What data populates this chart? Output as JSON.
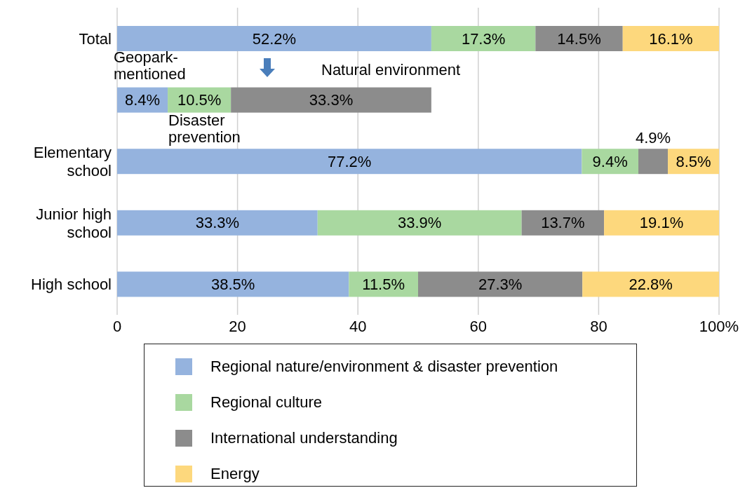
{
  "chart_data": {
    "type": "bar",
    "orientation": "horizontal",
    "stacked": true,
    "categories": [
      "Total",
      null,
      "Elementary school",
      "Junior high school",
      "High school"
    ],
    "series": [
      {
        "name": "Regional nature/environment & disaster prevention",
        "color": "#95b3de",
        "values": [
          52.2,
          8.4,
          77.2,
          33.3,
          38.5
        ],
        "value_labels": [
          "52.2%",
          "8.4%",
          "77.2%",
          "33.3%",
          "38.5%"
        ]
      },
      {
        "name": "Regional culture",
        "color": "#a9d8a0",
        "values": [
          17.3,
          10.5,
          9.4,
          33.9,
          11.5
        ],
        "value_labels": [
          "17.3%",
          "10.5%",
          "9.4%",
          "33.9%",
          "11.5%"
        ]
      },
      {
        "name": "International understanding",
        "color": "#8c8c8c",
        "values": [
          14.5,
          33.3,
          4.9,
          13.7,
          27.3
        ],
        "value_labels": [
          "14.5%",
          "33.3%",
          "4.9%",
          "13.7%",
          "27.3%"
        ]
      },
      {
        "name": "Energy",
        "color": "#fdd87d",
        "values": [
          16.1,
          null,
          8.5,
          19.1,
          22.8
        ],
        "value_labels": [
          "16.1%",
          null,
          "8.5%",
          "19.1%",
          "22.8%"
        ]
      }
    ],
    "xlim": [
      0,
      100
    ],
    "xticks": [
      0,
      20,
      40,
      60,
      80,
      {
        "value": 100,
        "label": "100%"
      }
    ],
    "grid": "x",
    "legend": "bottom",
    "annotations": [
      "Geopark-mentioned",
      "Disaster prevention",
      "Natural environment"
    ]
  }
}
